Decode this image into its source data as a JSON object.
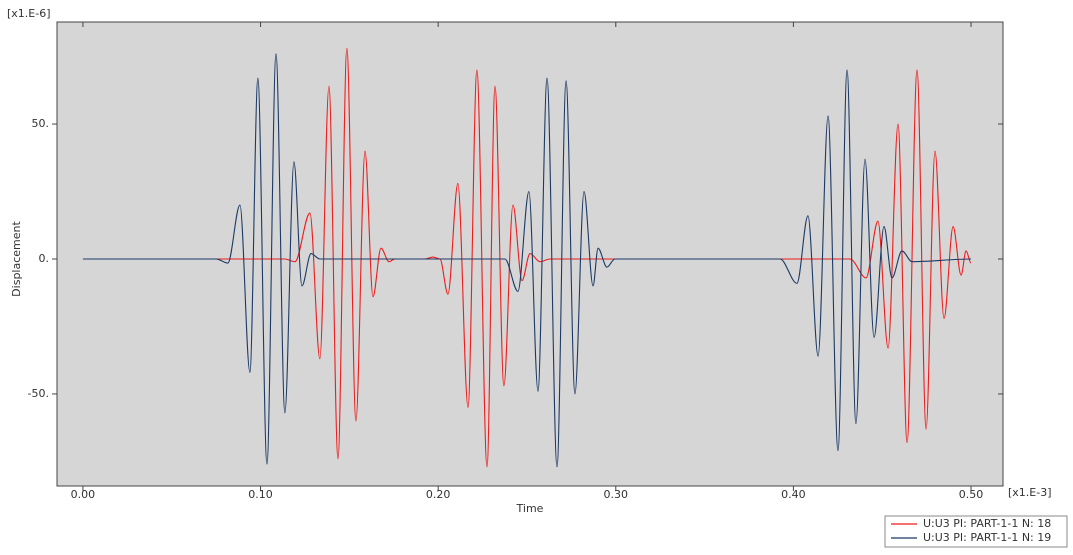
{
  "chart_data": {
    "type": "line",
    "x_label": "Time",
    "y_label": "Displacement",
    "x_unit": "[x1.E-3]",
    "y_unit": "[x1.E-6]",
    "background": "#d6d6d6",
    "xlim": [
      -0.0146,
      0.518
    ],
    "ylim": [
      -84.1,
      87.8
    ],
    "xticks": [
      {
        "value": 0,
        "label": "0.00"
      },
      {
        "value": 0.1,
        "label": "0.10"
      },
      {
        "value": 0.2,
        "label": "0.20"
      },
      {
        "value": 0.3,
        "label": "0.30"
      },
      {
        "value": 0.4,
        "label": "0.40"
      },
      {
        "value": 0.5,
        "label": "0.50"
      }
    ],
    "yticks": [
      {
        "value": -50,
        "label": "-50."
      },
      {
        "value": 0,
        "label": "0."
      },
      {
        "value": 50,
        "label": "50."
      }
    ],
    "legend": "bottom-right",
    "series": [
      {
        "name": "U:U3 PI: PART-1-1 N: 18",
        "color": "#ee1c1c",
        "x": [
          0,
          0.1137,
          0.1194,
          0.1278,
          0.1334,
          0.1385,
          0.1436,
          0.1486,
          0.1537,
          0.1588,
          0.1633,
          0.1678,
          0.1723,
          0.1757,
          0.1926,
          0.1971,
          0.201,
          0.2055,
          0.2111,
          0.2168,
          0.2218,
          0.2275,
          0.232,
          0.237,
          0.2421,
          0.2472,
          0.2517,
          0.2573,
          0.263,
          0.4319,
          0.4409,
          0.4476,
          0.4533,
          0.4589,
          0.464,
          0.4696,
          0.4747,
          0.4797,
          0.4848,
          0.4899,
          0.4944,
          0.4972,
          0.5
        ],
        "values": [
          0,
          0,
          -1,
          17,
          -37,
          64,
          -74,
          78,
          -60,
          40,
          -14,
          4,
          -1,
          0,
          0,
          0.7,
          0,
          -13,
          28,
          -55,
          70,
          -77,
          64,
          -47,
          20,
          -8,
          2,
          -1,
          0,
          0,
          -7,
          14,
          -33,
          50,
          -68,
          70,
          -63,
          40,
          -22,
          12,
          -6,
          3,
          -1.5
        ]
      },
      {
        "name": "U:U3 PI: PART-1-1 N: 19",
        "color": "#1c3a66",
        "x": [
          0,
          0.0749,
          0.0816,
          0.0884,
          0.094,
          0.0985,
          0.1036,
          0.1087,
          0.1137,
          0.1188,
          0.1233,
          0.1284,
          0.1334,
          0.2376,
          0.2449,
          0.2511,
          0.2562,
          0.2613,
          0.2669,
          0.272,
          0.277,
          0.2821,
          0.2872,
          0.29,
          0.295,
          0.2995,
          0.3925,
          0.402,
          0.4082,
          0.4139,
          0.4195,
          0.4251,
          0.4302,
          0.4352,
          0.4403,
          0.4454,
          0.451,
          0.4555,
          0.4611,
          0.4668,
          0.5
        ],
        "values": [
          0,
          0,
          -1.5,
          20,
          -42,
          67,
          -76,
          76,
          -57,
          36,
          -10,
          2,
          0,
          0,
          -12,
          25,
          -49,
          67,
          -77,
          66,
          -50,
          25,
          -10,
          4,
          -3,
          0,
          0,
          -9,
          16,
          -36,
          53,
          -71,
          70,
          -61,
          37,
          -29,
          12,
          -7,
          3,
          -1,
          0
        ]
      }
    ]
  }
}
